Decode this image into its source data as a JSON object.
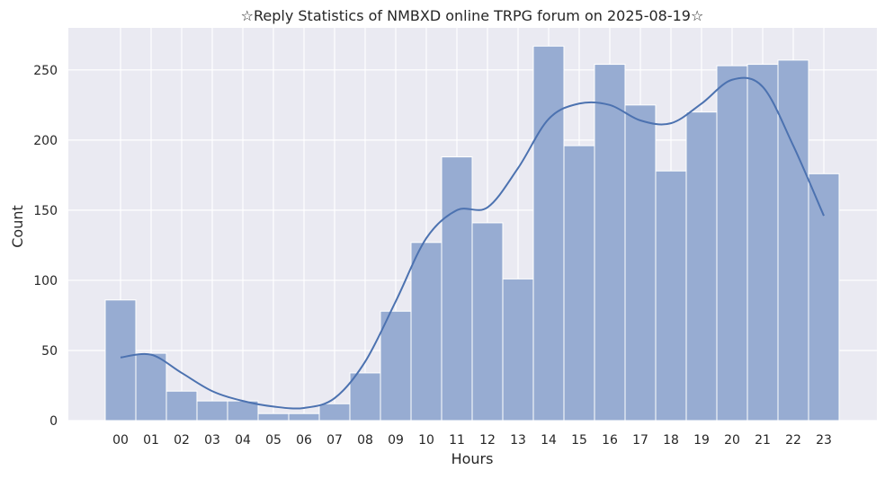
{
  "chart_data": {
    "type": "bar",
    "title": "☆Reply Statistics of NMBXD online TRPG forum on 2025-08-19☆",
    "xlabel": "Hours",
    "ylabel": "Count",
    "categories": [
      "00",
      "01",
      "02",
      "03",
      "04",
      "05",
      "06",
      "07",
      "08",
      "09",
      "10",
      "11",
      "12",
      "13",
      "14",
      "15",
      "16",
      "17",
      "18",
      "19",
      "20",
      "21",
      "22",
      "23"
    ],
    "values": [
      86,
      48,
      21,
      14,
      14,
      5,
      5,
      12,
      34,
      78,
      127,
      188,
      141,
      101,
      267,
      196,
      254,
      225,
      178,
      220,
      253,
      254,
      257,
      176
    ],
    "kde": [
      45,
      47,
      34,
      21,
      14,
      10,
      9,
      16,
      42,
      85,
      130,
      150,
      152,
      180,
      215,
      226,
      225,
      214,
      212,
      226,
      243,
      238,
      196,
      146
    ],
    "ylim": [
      0,
      280
    ],
    "yticks": [
      0,
      50,
      100,
      150,
      200,
      250
    ],
    "grid": true,
    "colors": {
      "bar_fill": "#97acd2",
      "bar_edge": "#ffffff",
      "kde_line": "#4c72b0",
      "plot_bg": "#eaeaf2",
      "grid": "#ffffff"
    }
  }
}
